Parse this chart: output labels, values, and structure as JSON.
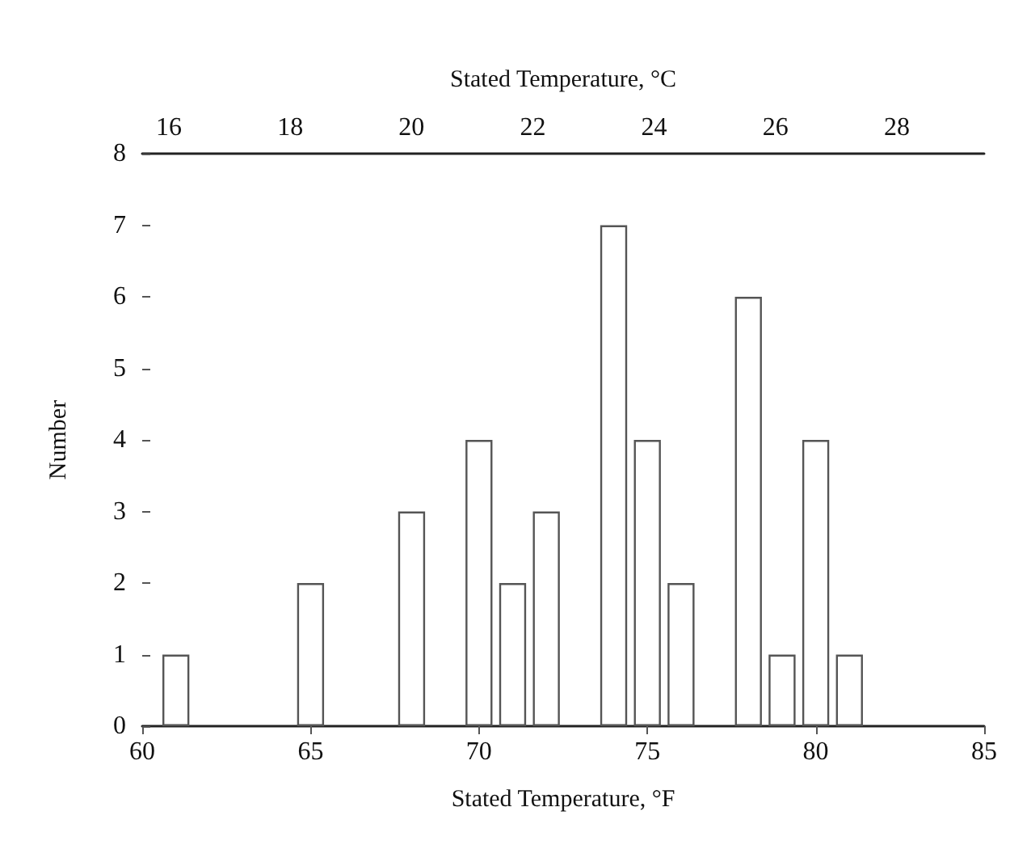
{
  "chart_data": {
    "type": "bar",
    "xlabel": "Stated Temperature, °F",
    "x2label": "Stated Temperature, °C",
    "ylabel": "Number",
    "x": [
      61,
      65,
      68,
      70,
      71,
      72,
      74,
      75,
      76,
      78,
      79,
      80,
      81
    ],
    "values": [
      1,
      2,
      3,
      4,
      2,
      3,
      7,
      4,
      2,
      6,
      1,
      4,
      1
    ],
    "color": "#ffffff",
    "xlim": [
      60,
      85
    ],
    "xticks": [
      60,
      65,
      70,
      75,
      80,
      85
    ],
    "x2lim": [
      15.56,
      29.44
    ],
    "x2ticks": [
      16,
      18,
      20,
      22,
      24,
      26,
      28
    ],
    "ylim": [
      0,
      8
    ],
    "yticks": [
      0,
      1,
      2,
      3,
      4,
      5,
      6,
      7,
      8
    ],
    "grid": false
  }
}
